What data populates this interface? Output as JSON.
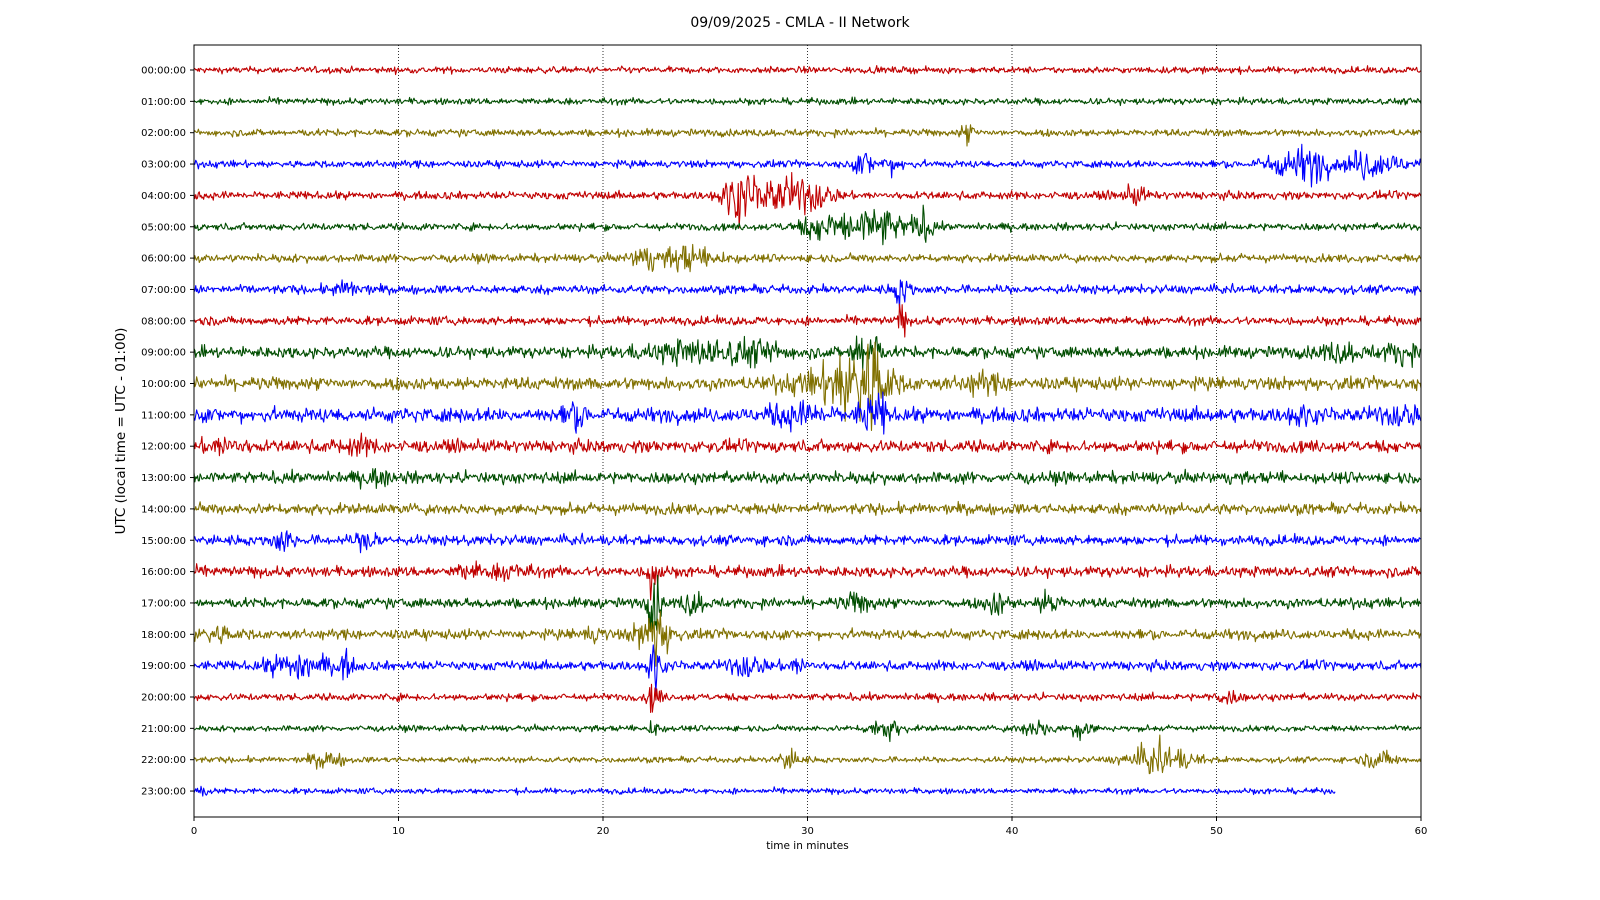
{
  "title": "09/09/2025 - CMLA - II Network",
  "chart_data": {
    "type": "line",
    "title": "09/09/2025 - CMLA - II Network",
    "xlabel": "time in minutes",
    "ylabel": "UTC (local time = UTC - 01:00)",
    "xlim": [
      0,
      60
    ],
    "x_ticks": [
      0,
      10,
      20,
      30,
      40,
      50,
      60
    ],
    "x_tick_labels": [
      "0",
      "10",
      "20",
      "30",
      "40",
      "50",
      "60"
    ],
    "grid": "vertical dotted lines at x ticks",
    "colors": [
      "#c00000",
      "#004d00",
      "#807000",
      "#0000ff"
    ],
    "color_cycle": "red, green, olive, blue (repeating by hour)",
    "series": [
      {
        "label": "00:00:00",
        "end_minute": 60,
        "noise": 0.9,
        "events": []
      },
      {
        "label": "01:00:00",
        "end_minute": 60,
        "noise": 0.9,
        "events": []
      },
      {
        "label": "02:00:00",
        "end_minute": 60,
        "noise": 1.0,
        "events": [
          [
            37.8,
            2.5,
            0.3
          ]
        ]
      },
      {
        "label": "03:00:00",
        "end_minute": 60,
        "noise": 1.0,
        "events": [
          [
            32.8,
            3,
            0.5
          ],
          [
            34.2,
            2,
            0.6
          ],
          [
            53.8,
            3,
            1.5
          ],
          [
            54.8,
            2.5,
            0.8
          ],
          [
            57.2,
            3.5,
            0.8
          ],
          [
            58.5,
            2,
            1.0
          ]
        ]
      },
      {
        "label": "04:00:00",
        "end_minute": 60,
        "noise": 1.1,
        "events": [
          [
            26.6,
            5,
            0.8
          ],
          [
            28.5,
            4,
            1.5
          ],
          [
            30.2,
            3,
            1.0
          ],
          [
            46,
            2,
            0.6
          ]
        ]
      },
      {
        "label": "05:00:00",
        "end_minute": 60,
        "noise": 1.0,
        "events": [
          [
            31.2,
            4,
            1.5
          ],
          [
            33.5,
            5,
            1.0
          ],
          [
            35.5,
            4,
            0.6
          ]
        ]
      },
      {
        "label": "06:00:00",
        "end_minute": 60,
        "noise": 1.1,
        "events": [
          [
            22,
            3,
            0.6
          ],
          [
            23.9,
            3.5,
            0.8
          ],
          [
            25.5,
            1.5,
            0.8
          ]
        ]
      },
      {
        "label": "07:00:00",
        "end_minute": 60,
        "noise": 1.2,
        "events": [
          [
            7.5,
            1.5,
            0.8
          ],
          [
            34.6,
            4,
            0.4
          ]
        ]
      },
      {
        "label": "08:00:00",
        "end_minute": 60,
        "noise": 1.2,
        "events": [
          [
            34.6,
            5,
            0.2
          ]
        ]
      },
      {
        "label": "09:00:00",
        "end_minute": 60,
        "noise": 1.6,
        "events": [
          [
            24.5,
            2.5,
            2.5
          ],
          [
            27.5,
            2,
            1.5
          ],
          [
            32.5,
            8,
            0.3
          ],
          [
            33.2,
            7,
            0.3
          ],
          [
            56,
            2,
            1.0
          ],
          [
            59,
            2,
            1.0
          ]
        ]
      },
      {
        "label": "10:00:00",
        "end_minute": 60,
        "noise": 1.8,
        "events": [
          [
            31.5,
            3,
            2.5
          ],
          [
            32.3,
            7,
            1.2
          ],
          [
            33.2,
            7,
            0.8
          ],
          [
            38.5,
            2,
            1.0
          ]
        ]
      },
      {
        "label": "11:00:00",
        "end_minute": 60,
        "noise": 2.0,
        "events": [
          [
            18.7,
            2.5,
            0.6
          ],
          [
            29.5,
            2.2,
            1.5
          ],
          [
            32.8,
            5,
            0.3
          ],
          [
            33.6,
            5,
            0.3
          ],
          [
            54,
            2,
            0.5
          ],
          [
            59,
            1.8,
            1.0
          ]
        ]
      },
      {
        "label": "12:00:00",
        "end_minute": 60,
        "noise": 1.7,
        "events": [
          [
            1.5,
            2,
            1.0
          ],
          [
            8,
            1.5,
            1.0
          ]
        ]
      },
      {
        "label": "13:00:00",
        "end_minute": 60,
        "noise": 1.6,
        "events": [
          [
            9,
            1.5,
            0.8
          ]
        ]
      },
      {
        "label": "14:00:00",
        "end_minute": 60,
        "noise": 1.5,
        "events": []
      },
      {
        "label": "15:00:00",
        "end_minute": 60,
        "noise": 1.4,
        "events": [
          [
            4.3,
            3,
            0.5
          ],
          [
            8.5,
            3,
            0.5
          ]
        ]
      },
      {
        "label": "16:00:00",
        "end_minute": 60,
        "noise": 1.5,
        "events": [
          [
            13.5,
            1.8,
            0.6
          ],
          [
            15.5,
            2,
            0.8
          ],
          [
            22.5,
            8,
            0.3
          ]
        ]
      },
      {
        "label": "17:00:00",
        "end_minute": 60,
        "noise": 1.4,
        "events": [
          [
            22.5,
            9,
            0.3
          ],
          [
            24.4,
            3,
            0.5
          ],
          [
            32.5,
            2,
            0.8
          ],
          [
            39.2,
            3,
            0.5
          ],
          [
            41.8,
            3,
            0.5
          ]
        ]
      },
      {
        "label": "18:00:00",
        "end_minute": 60,
        "noise": 1.4,
        "events": [
          [
            1,
            1.8,
            1.0
          ],
          [
            19.5,
            1.5,
            0.6
          ],
          [
            22.5,
            7,
            0.8
          ]
        ]
      },
      {
        "label": "19:00:00",
        "end_minute": 60,
        "noise": 1.3,
        "events": [
          [
            4.5,
            2.5,
            1.0
          ],
          [
            5.8,
            3,
            0.8
          ],
          [
            7.4,
            3,
            0.4
          ],
          [
            22.5,
            6,
            0.3
          ],
          [
            27,
            2.5,
            0.8
          ],
          [
            29.5,
            1.8,
            0.6
          ]
        ]
      },
      {
        "label": "20:00:00",
        "end_minute": 60,
        "noise": 1.0,
        "events": [
          [
            22.5,
            4,
            0.3
          ],
          [
            50.5,
            1.5,
            0.6
          ]
        ]
      },
      {
        "label": "21:00:00",
        "end_minute": 60,
        "noise": 0.8,
        "events": [
          [
            22.5,
            3,
            0.3
          ],
          [
            33.8,
            2.5,
            0.8
          ],
          [
            41.2,
            2,
            0.8
          ],
          [
            43.4,
            2.5,
            0.5
          ]
        ]
      },
      {
        "label": "22:00:00",
        "end_minute": 60,
        "noise": 0.8,
        "events": [
          [
            6.5,
            2,
            0.8
          ],
          [
            29.1,
            2.5,
            0.6
          ],
          [
            47.2,
            4,
            1.5
          ],
          [
            58,
            2,
            0.8
          ]
        ]
      },
      {
        "label": "23:00:00",
        "end_minute": 55.8,
        "noise": 0.8,
        "events": [
          [
            0.3,
            1.5,
            0.3
          ]
        ]
      }
    ]
  }
}
